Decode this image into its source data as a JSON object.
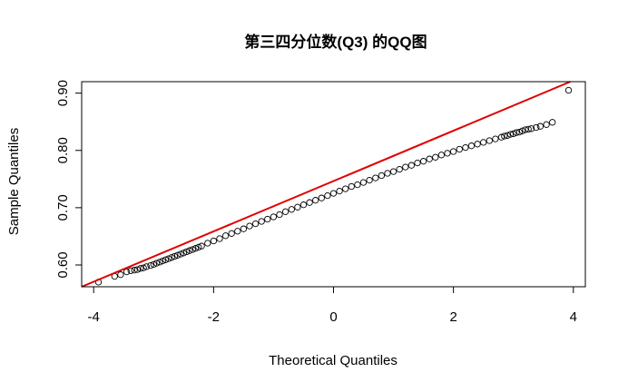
{
  "chart_data": {
    "type": "scatter",
    "title": "第三四分位数(Q3) 的QQ图",
    "xlabel": "Theoretical Quantiles",
    "ylabel": "Sample Quantiles",
    "xlim": [
      -4.2,
      4.2
    ],
    "ylim": [
      0.562,
      0.92
    ],
    "x_ticks": [
      -4,
      -2,
      0,
      2,
      4
    ],
    "x_tick_labels": [
      "-4",
      "-2",
      "0",
      "2",
      "4"
    ],
    "y_ticks": [
      0.6,
      0.7,
      0.8,
      0.9
    ],
    "y_tick_labels": [
      "0.60",
      "0.70",
      "0.80",
      "0.90"
    ],
    "grid": false,
    "legend": "none",
    "reference_line": {
      "points": [
        [
          -4.2,
          0.562
        ],
        [
          3.95,
          0.92
        ]
      ],
      "color": "#e00000"
    },
    "points_color": "#000000",
    "points": {
      "x": [
        -3.92,
        -3.65,
        -3.55,
        -3.45,
        -3.38,
        -3.32,
        -3.27,
        -3.22,
        -3.17,
        -3.12,
        -3.05,
        -3.0,
        -2.95,
        -2.9,
        -2.85,
        -2.8,
        -2.75,
        -2.7,
        -2.65,
        -2.6,
        -2.55,
        -2.5,
        -2.45,
        -2.4,
        -2.35,
        -2.3,
        -2.25,
        -2.2,
        -2.1,
        -2.0,
        -1.9,
        -1.8,
        -1.7,
        -1.6,
        -1.5,
        -1.4,
        -1.3,
        -1.2,
        -1.1,
        -1.0,
        -0.9,
        -0.8,
        -0.7,
        -0.6,
        -0.5,
        -0.4,
        -0.3,
        -0.2,
        -0.1,
        0.0,
        0.1,
        0.2,
        0.3,
        0.4,
        0.5,
        0.6,
        0.7,
        0.8,
        0.9,
        1.0,
        1.1,
        1.2,
        1.3,
        1.4,
        1.5,
        1.6,
        1.7,
        1.8,
        1.9,
        2.0,
        2.1,
        2.2,
        2.3,
        2.4,
        2.5,
        2.6,
        2.7,
        2.8,
        2.85,
        2.9,
        2.95,
        3.0,
        3.05,
        3.1,
        3.15,
        3.2,
        3.25,
        3.3,
        3.38,
        3.45,
        3.55,
        3.65,
        3.92
      ],
      "y": [
        0.57,
        0.58,
        0.583,
        0.588,
        0.59,
        0.591,
        0.592,
        0.594,
        0.595,
        0.597,
        0.599,
        0.601,
        0.603,
        0.605,
        0.607,
        0.609,
        0.611,
        0.613,
        0.615,
        0.617,
        0.619,
        0.621,
        0.623,
        0.625,
        0.627,
        0.629,
        0.631,
        0.633,
        0.638,
        0.642,
        0.646,
        0.651,
        0.655,
        0.659,
        0.663,
        0.668,
        0.672,
        0.676,
        0.68,
        0.684,
        0.688,
        0.693,
        0.697,
        0.701,
        0.705,
        0.709,
        0.713,
        0.717,
        0.721,
        0.725,
        0.729,
        0.733,
        0.737,
        0.74,
        0.744,
        0.748,
        0.752,
        0.756,
        0.76,
        0.763,
        0.767,
        0.771,
        0.774,
        0.778,
        0.781,
        0.785,
        0.788,
        0.792,
        0.795,
        0.798,
        0.802,
        0.805,
        0.808,
        0.811,
        0.814,
        0.817,
        0.82,
        0.823,
        0.825,
        0.826,
        0.828,
        0.829,
        0.831,
        0.832,
        0.834,
        0.836,
        0.837,
        0.838,
        0.84,
        0.842,
        0.845,
        0.849,
        0.905
      ]
    }
  }
}
